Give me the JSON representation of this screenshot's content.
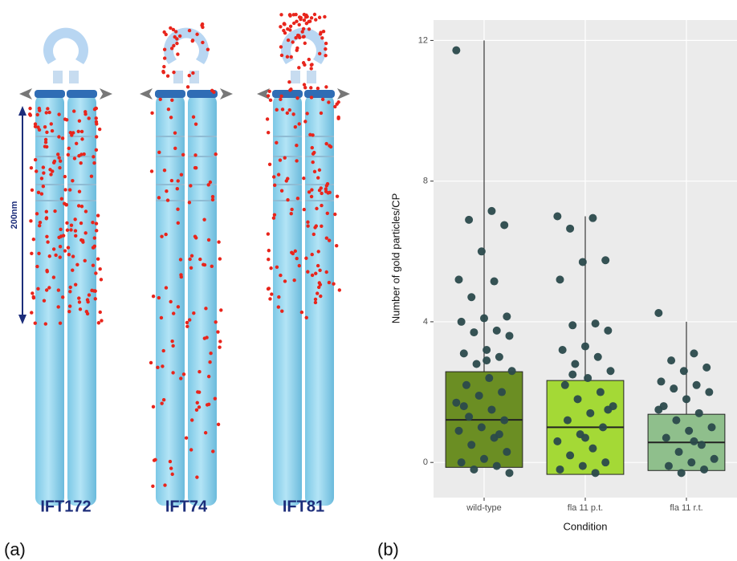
{
  "panel_a": {
    "label": "(a)",
    "scale_bar": "200nm",
    "proteins": [
      "IFT172",
      "IFT74",
      "IFT81"
    ]
  },
  "chart_data": {
    "type": "box",
    "panel_label": "(b)",
    "x_label": "Condition",
    "y_label": "Number of gold particles/CP",
    "categories": [
      "wild-type",
      "fla 11 p.t.",
      "fla 11 r.t."
    ],
    "colors": [
      "#6b8e23",
      "#a4d936",
      "#8fbf8c"
    ],
    "point_color": "#2b4a4c",
    "ylim": [
      -1,
      12.58
    ],
    "yticks": [
      0,
      4,
      8,
      12
    ],
    "grid": true,
    "boxes": [
      {
        "whisker_low": -0.14,
        "q1": -0.14,
        "median": 1.21,
        "q3": 2.58,
        "whisker_high": 12
      },
      {
        "whisker_low": -0.34,
        "q1": -0.34,
        "median": 1.0,
        "q3": 2.33,
        "whisker_high": 7.0
      },
      {
        "whisker_low": -0.23,
        "q1": -0.23,
        "median": 0.57,
        "q3": 1.37,
        "whisker_high": 4.0
      }
    ],
    "points": [
      [
        11.72,
        7.15,
        6.9,
        6.75,
        6.0,
        5.2,
        5.15,
        4.7,
        4.15,
        4.1,
        4.0,
        3.75,
        3.7,
        3.6,
        3.2,
        3.1,
        3.0,
        2.8,
        2.6,
        2.4,
        2.2,
        2.0,
        1.9,
        1.7,
        1.5,
        1.3,
        1.2,
        1.0,
        0.9,
        0.7,
        0.5,
        0.3,
        0.1,
        0.0,
        -0.1,
        -0.2,
        -0.3,
        2.9,
        1.6,
        0.8
      ],
      [
        7.0,
        6.95,
        6.65,
        5.75,
        5.7,
        5.2,
        3.95,
        3.9,
        3.75,
        3.3,
        3.2,
        3.0,
        2.8,
        2.6,
        2.4,
        2.2,
        2.0,
        1.8,
        1.6,
        1.4,
        1.2,
        1.0,
        0.8,
        0.6,
        0.4,
        0.2,
        0.0,
        -0.1,
        -0.2,
        -0.3,
        2.5,
        1.5,
        0.7
      ],
      [
        4.25,
        3.1,
        2.9,
        2.7,
        2.6,
        2.3,
        2.2,
        2.1,
        2.0,
        1.8,
        1.6,
        1.4,
        1.2,
        1.0,
        0.9,
        0.7,
        0.5,
        0.3,
        0.1,
        0.0,
        -0.1,
        -0.2,
        -0.3,
        1.5,
        0.6
      ]
    ]
  }
}
